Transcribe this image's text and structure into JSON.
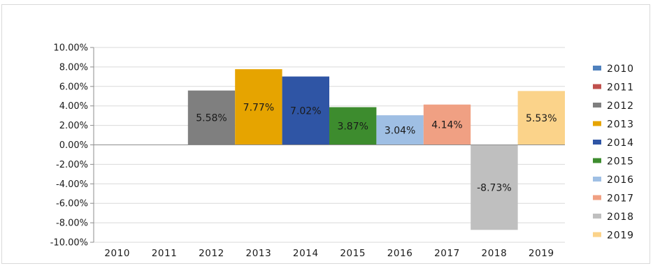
{
  "chart_data": {
    "type": "bar",
    "categories": [
      "2010",
      "2011",
      "2012",
      "2013",
      "2014",
      "2015",
      "2016",
      "2017",
      "2018",
      "2019"
    ],
    "values": [
      0,
      0,
      5.58,
      7.77,
      7.02,
      3.87,
      3.04,
      4.14,
      -8.73,
      5.53
    ],
    "data_labels": [
      "",
      "",
      "5.58%",
      "7.77%",
      "7.02%",
      "3.87%",
      "3.04%",
      "4.14%",
      "-8.73%",
      "5.53%"
    ],
    "colors": [
      "#4f81bd",
      "#c0504d",
      "#7f7f7f",
      "#e6a400",
      "#2f55a5",
      "#3d8c2e",
      "#9fbfe4",
      "#f0a083",
      "#bfbfbf",
      "#fbd38a"
    ],
    "ylim": [
      -10,
      10
    ],
    "yticks": [
      "10.00%",
      "8.00%",
      "6.00%",
      "4.00%",
      "2.00%",
      "0.00%",
      "-2.00%",
      "-4.00%",
      "-6.00%",
      "-8.00%",
      "-10.00%"
    ],
    "title": "",
    "xlabel": "",
    "ylabel": "",
    "grid": true,
    "legend": {
      "position": "right",
      "entries": [
        "2010",
        "2011",
        "2012",
        "2013",
        "2014",
        "2015",
        "2016",
        "2017",
        "2018",
        "2019"
      ]
    }
  }
}
